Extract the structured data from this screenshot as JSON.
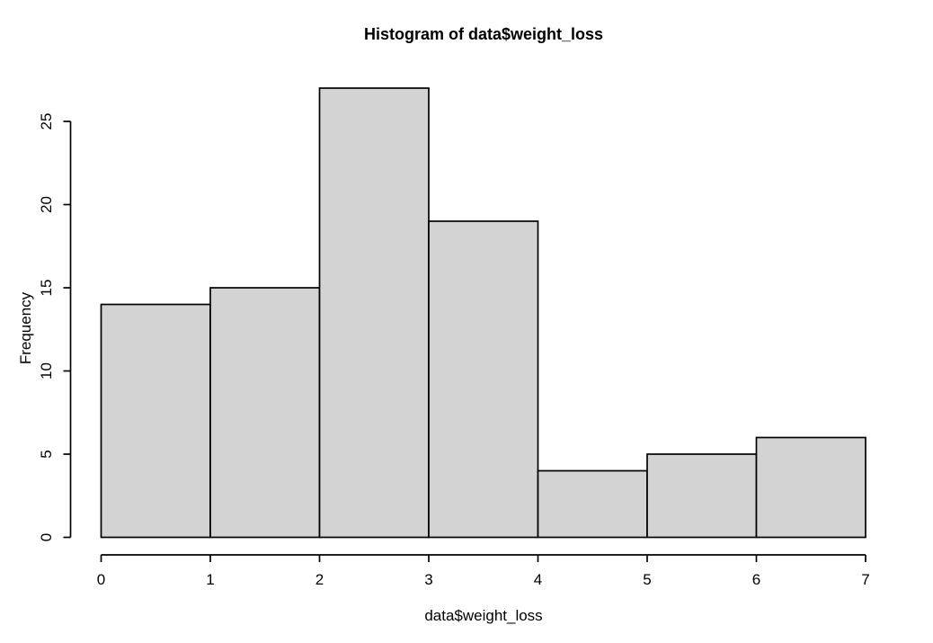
{
  "chart_data": {
    "type": "bar",
    "subtype": "histogram",
    "title": "Histogram of data$weight_loss",
    "xlabel": "data$weight_loss",
    "ylabel": "Frequency",
    "breaks": [
      0,
      1,
      2,
      3,
      4,
      5,
      6,
      7
    ],
    "counts": [
      14,
      15,
      27,
      19,
      4,
      5,
      6
    ],
    "x_ticks": [
      0,
      1,
      2,
      3,
      4,
      5,
      6,
      7
    ],
    "y_ticks": [
      0,
      5,
      10,
      15,
      20,
      25
    ],
    "xlim": [
      0,
      7
    ],
    "ylim": [
      0,
      27
    ],
    "grid": false,
    "legend": "none",
    "colors": {
      "bar_fill": "#d3d3d3",
      "bar_stroke": "#000000",
      "axis": "#000000",
      "text": "#000000",
      "background": "#ffffff"
    }
  }
}
